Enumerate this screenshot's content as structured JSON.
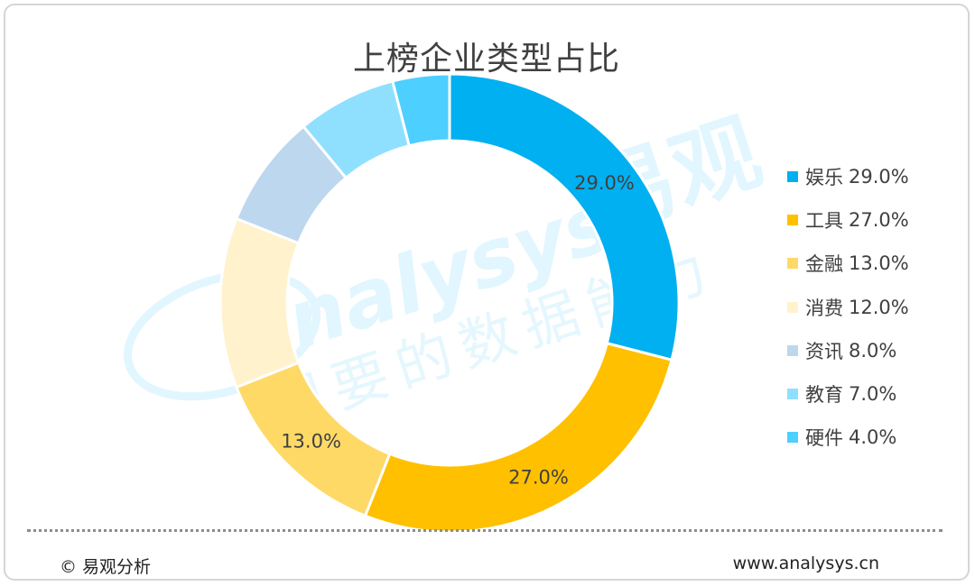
{
  "title": "上榜企业类型占比",
  "watermark": {
    "brand_latin": "analysys",
    "brand_cjk": "易观",
    "slogan": "想要的数据能力"
  },
  "footer": {
    "copyright": "© 易观分析",
    "url": "www.analysys.cn"
  },
  "chart_data": {
    "type": "pie",
    "variant": "donut",
    "title": "上榜企业类型占比",
    "legend_position": "right",
    "unit": "%",
    "categories": [
      "娱乐",
      "工具",
      "金融",
      "消费",
      "资讯",
      "教育",
      "硬件"
    ],
    "values": [
      29.0,
      27.0,
      13.0,
      12.0,
      8.0,
      7.0,
      4.0
    ],
    "labels": [
      "29.0%",
      "27.0%",
      "13.0%",
      "12.0%",
      "8.0%",
      "7.0%",
      "4.0%"
    ],
    "slice_labels_shown": [
      true,
      true,
      true,
      false,
      false,
      false,
      false
    ],
    "colors": [
      "#00b0f0",
      "#ffc000",
      "#ffd966",
      "#fff2cc",
      "#bdd7ee",
      "#8fe0ff",
      "#4dcfff"
    ]
  }
}
